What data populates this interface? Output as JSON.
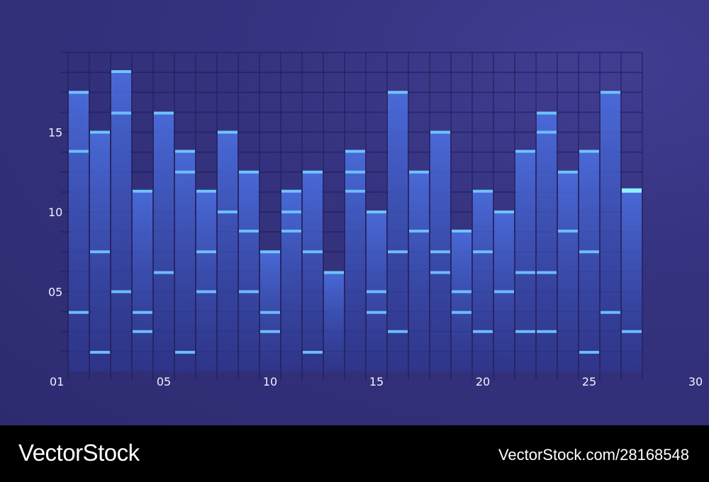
{
  "colors": {
    "bar_top": "#4b6fe0",
    "bar_bottom": "#2d3a96",
    "segment_line": "#6fc3ff",
    "segment_line_bright": "#8ff2ff",
    "axis": "#ff8cf0",
    "tick_text": "#f2f0ff"
  },
  "footer": {
    "brand": "VectorStock",
    "credit": "VectorStock.com/28168548"
  },
  "chart_data": {
    "type": "bar",
    "ylim": [
      0,
      20
    ],
    "y_ticks": [
      {
        "value": 5,
        "label": "05"
      },
      {
        "value": 10,
        "label": "10"
      },
      {
        "value": 15,
        "label": "15"
      }
    ],
    "x_ticks": [
      {
        "index": 1,
        "label": "01"
      },
      {
        "index": 5,
        "label": "05"
      },
      {
        "index": 10,
        "label": "10"
      },
      {
        "index": 15,
        "label": "15"
      },
      {
        "index": 20,
        "label": "20"
      },
      {
        "index": 25,
        "label": "25"
      },
      {
        "index": 30,
        "label": "30"
      }
    ],
    "grid": true,
    "bars": [
      {
        "x": 1,
        "value": 17.5,
        "levels": [
          3.7,
          13.8
        ]
      },
      {
        "x": 2,
        "value": 15.0,
        "levels": [
          1.2,
          7.5
        ]
      },
      {
        "x": 3,
        "value": 18.8,
        "levels": [
          5.0,
          16.2
        ]
      },
      {
        "x": 4,
        "value": 11.3,
        "levels": [
          2.5,
          3.7
        ]
      },
      {
        "x": 5,
        "value": 16.2,
        "levels": [
          6.2
        ]
      },
      {
        "x": 6,
        "value": 13.8,
        "levels": [
          1.2,
          12.5
        ]
      },
      {
        "x": 7,
        "value": 11.3,
        "levels": [
          5.0,
          7.5
        ]
      },
      {
        "x": 8,
        "value": 15.0,
        "levels": [
          10.0
        ]
      },
      {
        "x": 9,
        "value": 12.5,
        "levels": [
          5.0,
          8.8
        ]
      },
      {
        "x": 10,
        "value": 7.5,
        "levels": [
          2.5,
          3.7
        ]
      },
      {
        "x": 11,
        "value": 11.3,
        "levels": [
          8.8,
          10.0
        ]
      },
      {
        "x": 12,
        "value": 12.5,
        "levels": [
          1.2,
          7.5
        ]
      },
      {
        "x": 13,
        "value": 6.2,
        "levels": []
      },
      {
        "x": 14,
        "value": 13.8,
        "levels": [
          11.3,
          12.5
        ]
      },
      {
        "x": 15,
        "value": 10.0,
        "levels": [
          3.7,
          5.0
        ]
      },
      {
        "x": 16,
        "value": 17.5,
        "levels": [
          2.5,
          7.5
        ]
      },
      {
        "x": 17,
        "value": 12.5,
        "levels": [
          8.8
        ]
      },
      {
        "x": 18,
        "value": 15.0,
        "levels": [
          6.2,
          7.5
        ]
      },
      {
        "x": 19,
        "value": 8.8,
        "levels": [
          3.7,
          5.0
        ]
      },
      {
        "x": 20,
        "value": 11.3,
        "levels": [
          2.5,
          7.5
        ]
      },
      {
        "x": 21,
        "value": 10.0,
        "levels": [
          5.0
        ]
      },
      {
        "x": 22,
        "value": 13.8,
        "levels": [
          2.5,
          6.2
        ]
      },
      {
        "x": 23,
        "value": 16.2,
        "levels": [
          2.5,
          6.2,
          15.0
        ]
      },
      {
        "x": 24,
        "value": 12.5,
        "levels": [
          8.8
        ]
      },
      {
        "x": 25,
        "value": 13.8,
        "levels": [
          1.2,
          7.5
        ]
      },
      {
        "x": 26,
        "value": 17.5,
        "levels": [
          3.7
        ]
      },
      {
        "x": 27,
        "value": 11.3,
        "levels": [
          2.5
        ]
      }
    ]
  }
}
